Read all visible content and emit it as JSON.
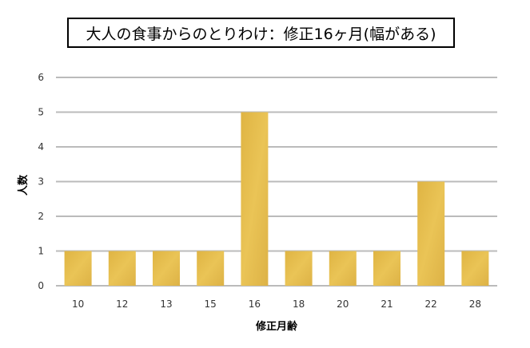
{
  "chart_data": {
    "type": "bar",
    "title": "大人の食事からのとりわけ：修正16ヶ月(幅がある)",
    "categories": [
      "10",
      "12",
      "13",
      "15",
      "16",
      "18",
      "20",
      "21",
      "22",
      "28"
    ],
    "values": [
      1,
      1,
      1,
      1,
      5,
      1,
      1,
      1,
      3,
      1
    ],
    "xlabel": "修正月齢",
    "ylabel": "人数",
    "ylim": [
      0,
      6
    ],
    "yticks": [
      0,
      1,
      2,
      3,
      4,
      5,
      6
    ],
    "grid": true,
    "legend": "none",
    "bar_color": "#E3B94A",
    "grid_color": "#BBBBBB"
  }
}
